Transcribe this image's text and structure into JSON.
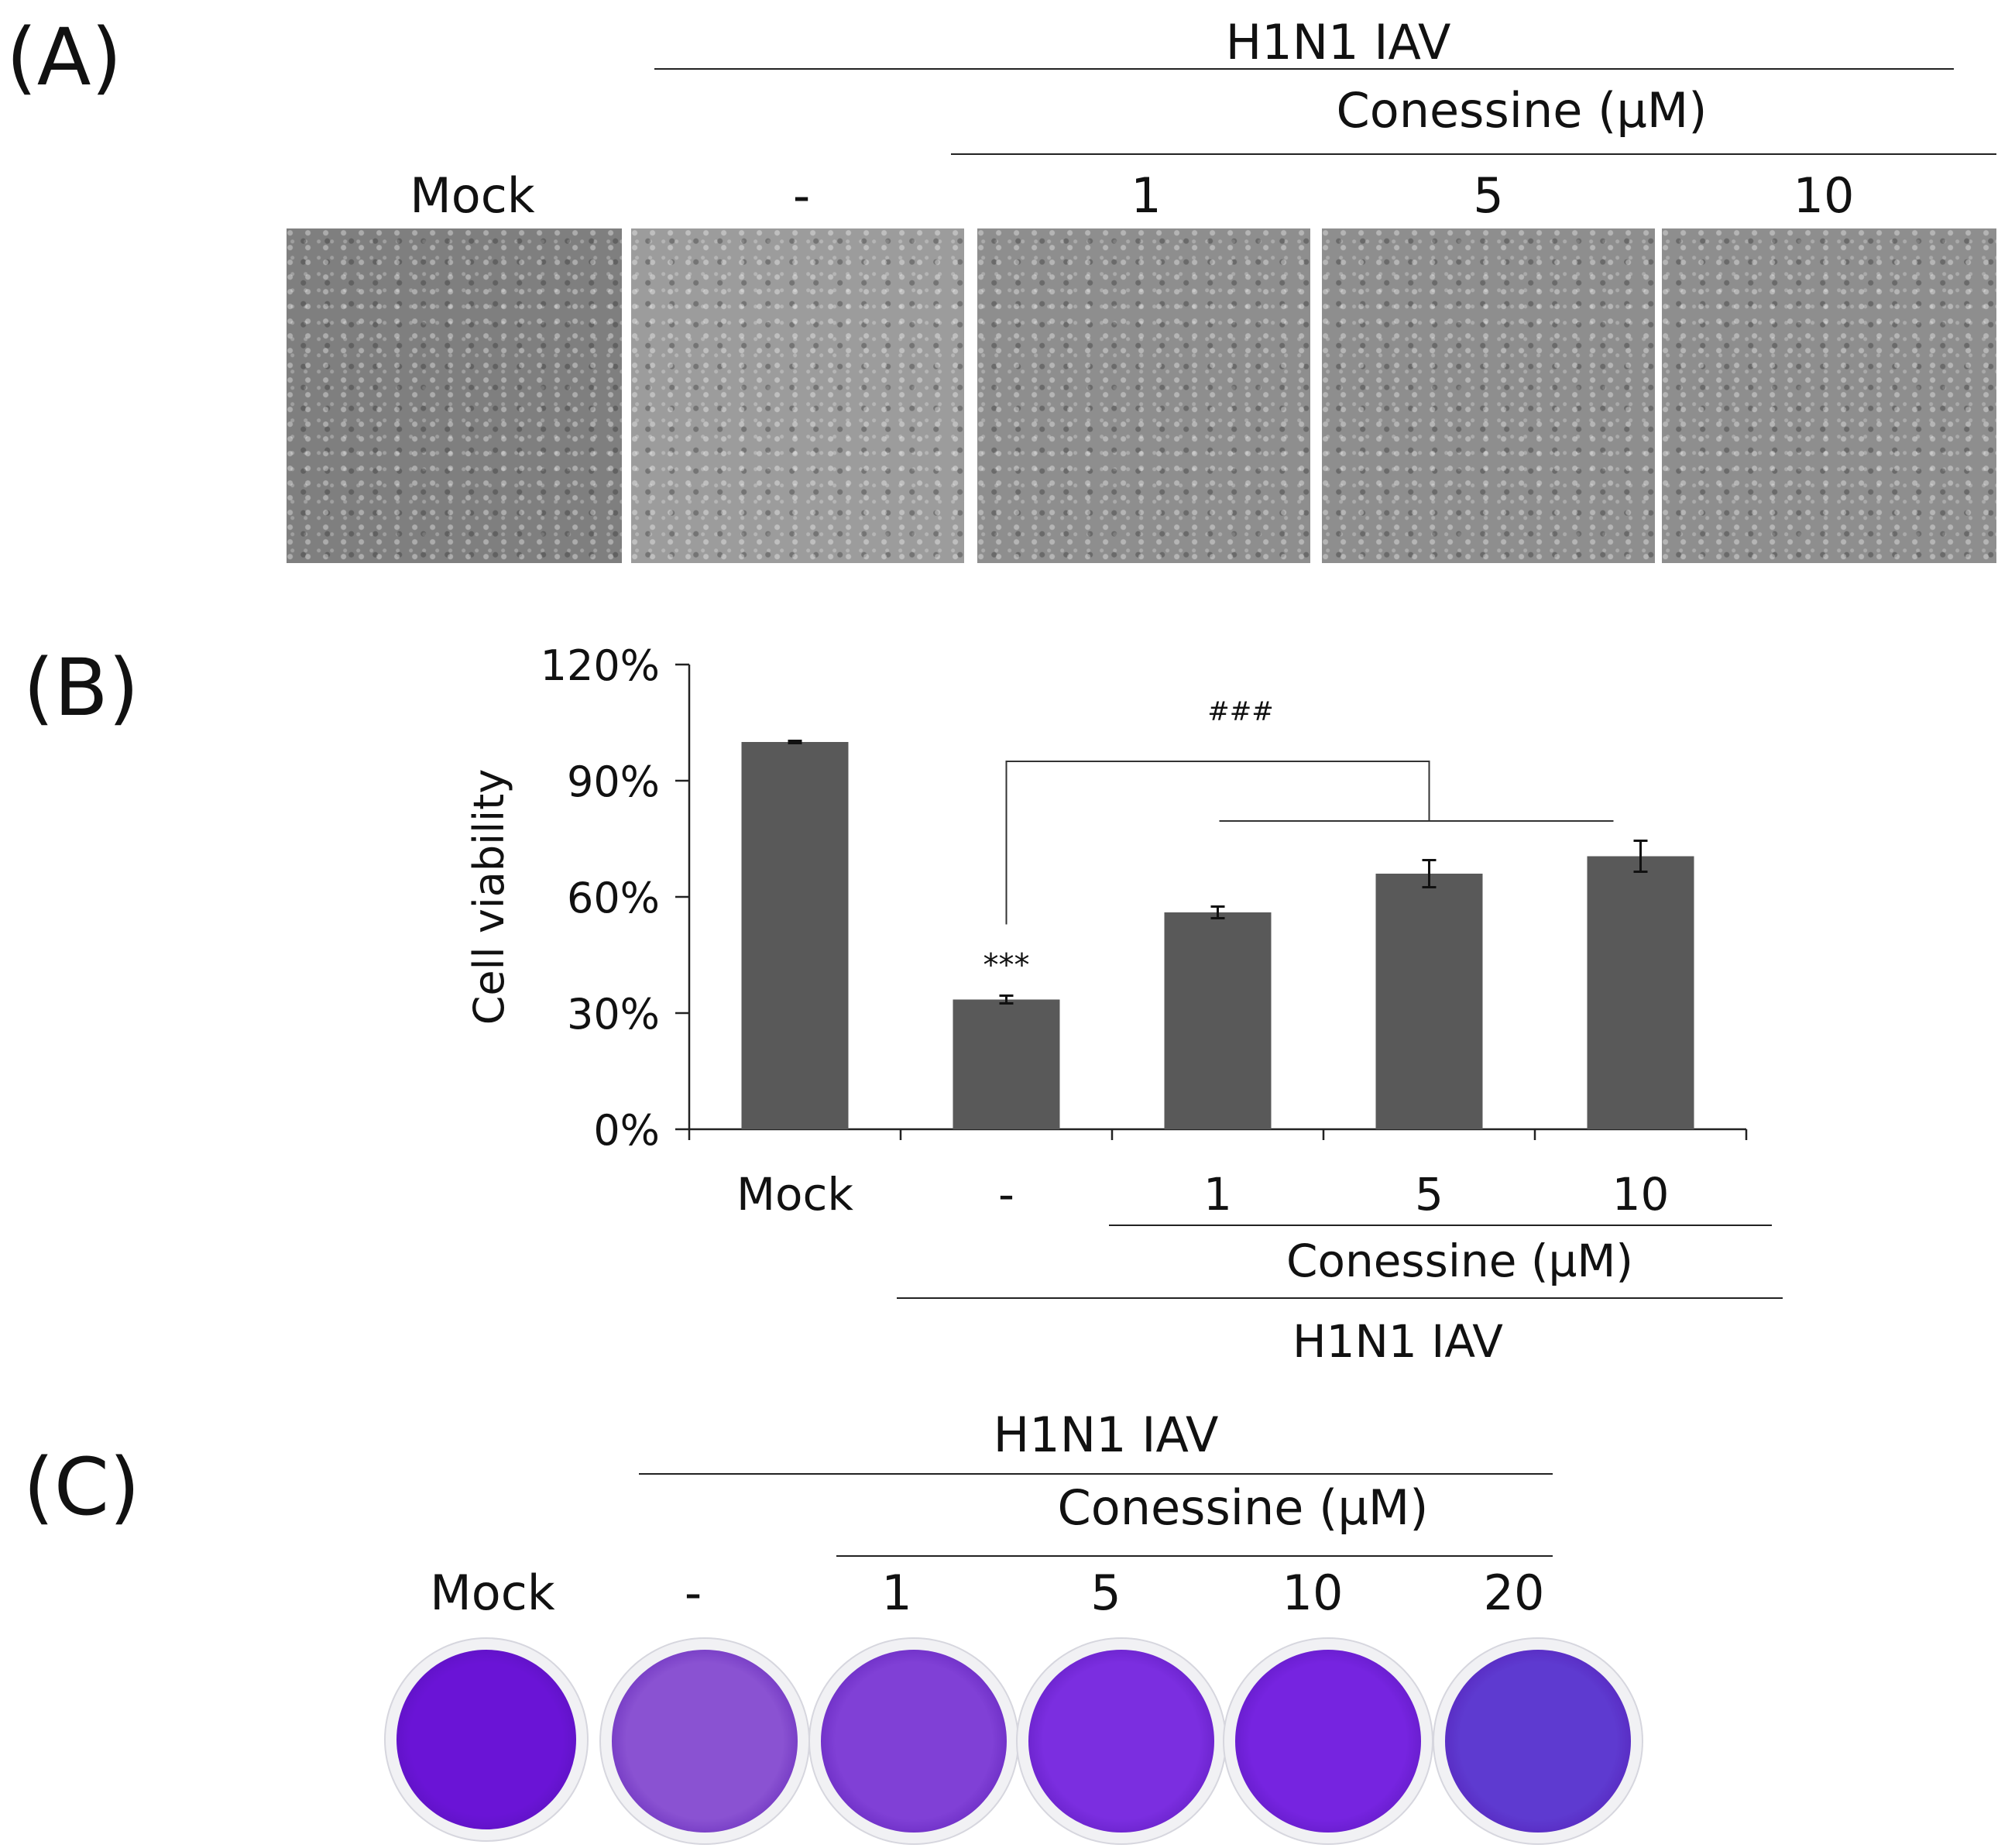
{
  "panels": {
    "a": "(A)",
    "b": "(B)",
    "c": "(C)"
  },
  "panel_a": {
    "virus_label": "H1N1 IAV",
    "drug_label": "Conessine (µM)",
    "columns": [
      "Mock",
      "-",
      "1",
      "5",
      "10"
    ]
  },
  "panel_c": {
    "virus_label": "H1N1 IAV",
    "drug_label": "Conessine (µM)",
    "columns": [
      "Mock",
      "-",
      "1",
      "5",
      "10",
      "20"
    ],
    "well_colors": [
      "#6a14d6",
      "#8a52d2",
      "#8040d6",
      "#7b2ee0",
      "#7624e0",
      "#5e3ad0"
    ]
  },
  "chart_data": {
    "type": "bar",
    "categories": [
      "Mock",
      "-",
      "1",
      "5",
      "10"
    ],
    "values": [
      100,
      33.5,
      56,
      66,
      70.5
    ],
    "errors": [
      0.3,
      1,
      1.5,
      3.5,
      4
    ],
    "ylabel": "Cell viability",
    "ylim": [
      0,
      120
    ],
    "yticks": [
      "0%",
      "30%",
      "60%",
      "90%",
      "120%"
    ],
    "bar_color": "#595959",
    "annotations": {
      "stars": "***",
      "hashes": "###"
    },
    "group_labels": {
      "drug": "Conessine (µM)",
      "virus": "H1N1 IAV"
    }
  }
}
